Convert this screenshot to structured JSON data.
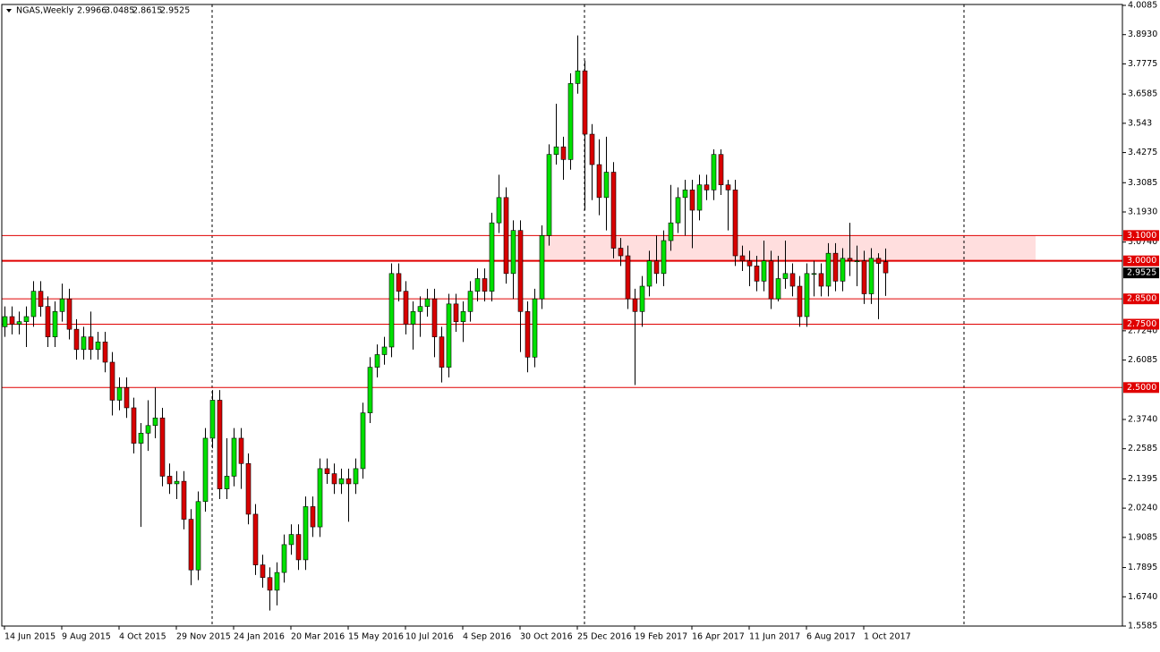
{
  "chart_data": {
    "type": "candlestick",
    "symbol": "NGAS,Weekly",
    "categories": [
      "14 Jun 2015",
      null,
      null,
      null,
      null,
      null,
      null,
      null,
      "9 Aug 2015",
      null,
      null,
      null,
      null,
      null,
      null,
      null,
      "4 Oct 2015",
      null,
      null,
      null,
      null,
      null,
      null,
      null,
      "29 Nov 2015",
      null,
      null,
      null,
      null,
      null,
      null,
      null,
      "24 Jan 2016",
      null,
      null,
      null,
      null,
      null,
      null,
      null,
      "20 Mar 2016",
      null,
      null,
      null,
      null,
      null,
      null,
      null,
      "15 May 2016",
      null,
      null,
      null,
      null,
      null,
      null,
      null,
      "10 Jul 2016",
      null,
      null,
      null,
      null,
      null,
      null,
      null,
      "4 Sep 2016",
      null,
      null,
      null,
      null,
      null,
      null,
      null,
      "30 Oct 2016",
      null,
      null,
      null,
      null,
      null,
      null,
      null,
      "25 Dec 2016",
      null,
      null,
      null,
      null,
      null,
      null,
      null,
      "19 Feb 2017",
      null,
      null,
      null,
      null,
      null,
      null,
      null,
      "16 Apr 2017",
      null,
      null,
      null,
      null,
      null,
      null,
      null,
      "11 Jun 2017",
      null,
      null,
      null,
      null,
      null,
      null,
      null,
      "6 Aug 2017",
      null,
      null,
      null,
      null,
      null,
      null,
      null,
      "1 Oct 2017",
      null,
      null,
      null
    ],
    "series": [
      {
        "up_color": "#00e000",
        "down_color": "#d80000",
        "open": [
          2.74,
          2.78,
          2.75,
          2.76,
          2.78,
          2.88,
          2.82,
          2.7,
          2.8,
          2.85,
          2.73,
          2.65,
          2.7,
          2.65,
          2.68,
          2.6,
          2.45,
          2.5,
          2.42,
          2.28,
          2.32,
          2.35,
          2.38,
          2.15,
          2.12,
          2.13,
          1.98,
          1.78,
          2.05,
          2.3,
          2.45,
          2.1,
          2.15,
          2.3,
          2.2,
          2.0,
          1.8,
          1.75,
          1.7,
          1.77,
          1.88,
          1.92,
          1.82,
          2.03,
          1.95,
          2.18,
          2.16,
          2.12,
          2.14,
          2.12,
          2.18,
          2.4,
          2.58,
          2.63,
          2.66,
          2.95,
          2.88,
          2.75,
          2.8,
          2.82,
          2.85,
          2.7,
          2.58,
          2.83,
          2.76,
          2.8,
          2.88,
          2.93,
          2.88,
          3.15,
          3.25,
          2.95,
          3.12,
          2.8,
          2.62,
          2.85,
          3.1,
          3.42,
          3.45,
          3.4,
          3.7,
          3.75,
          3.5,
          3.38,
          3.25,
          3.35,
          3.05,
          3.02,
          2.85,
          2.8,
          2.9,
          3.0,
          2.95,
          3.08,
          3.15,
          3.25,
          3.28,
          3.2,
          3.3,
          3.28,
          3.42,
          3.3,
          3.28,
          3.02,
          3.0,
          2.98,
          2.92,
          3.0,
          2.85,
          2.93,
          2.95,
          2.9,
          2.78,
          2.95,
          2.95,
          2.9,
          3.03,
          2.92,
          3.01,
          3.0,
          3.0,
          2.87,
          3.01,
          2.9966
        ],
        "high": [
          2.82,
          2.82,
          2.8,
          2.82,
          2.92,
          2.92,
          2.86,
          2.84,
          2.91,
          2.89,
          2.77,
          2.74,
          2.8,
          2.72,
          2.72,
          2.64,
          2.54,
          2.54,
          2.46,
          2.36,
          2.45,
          2.5,
          2.42,
          2.2,
          2.17,
          2.17,
          2.02,
          2.09,
          2.34,
          2.49,
          2.49,
          2.3,
          2.34,
          2.34,
          2.24,
          2.04,
          1.84,
          1.79,
          1.81,
          1.92,
          1.96,
          1.96,
          2.07,
          2.07,
          2.22,
          2.22,
          2.2,
          2.18,
          2.18,
          2.22,
          2.44,
          2.62,
          2.67,
          2.7,
          2.99,
          2.99,
          2.92,
          2.84,
          2.86,
          2.89,
          2.89,
          2.74,
          2.87,
          2.87,
          2.84,
          2.92,
          2.97,
          2.97,
          3.19,
          3.34,
          3.29,
          3.16,
          3.16,
          2.84,
          2.89,
          3.14,
          3.46,
          3.62,
          3.49,
          3.74,
          3.89,
          3.79,
          3.54,
          3.48,
          3.49,
          3.39,
          3.09,
          3.06,
          2.89,
          2.94,
          3.04,
          3.1,
          3.12,
          3.3,
          3.29,
          3.32,
          3.32,
          3.34,
          3.34,
          3.44,
          3.44,
          3.32,
          3.32,
          3.06,
          3.04,
          3.02,
          3.08,
          3.04,
          3.02,
          3.08,
          2.99,
          2.94,
          2.99,
          3.0,
          2.99,
          3.07,
          3.07,
          3.05,
          3.15,
          3.06,
          3.04,
          3.05,
          3.03,
          3.0485
        ],
        "low": [
          2.7,
          2.71,
          2.71,
          2.66,
          2.74,
          2.78,
          2.66,
          2.66,
          2.76,
          2.69,
          2.61,
          2.61,
          2.61,
          2.61,
          2.56,
          2.39,
          2.41,
          2.38,
          2.24,
          1.95,
          2.25,
          2.3,
          2.11,
          2.08,
          2.06,
          1.94,
          1.72,
          1.74,
          2.01,
          2.26,
          2.06,
          2.06,
          2.11,
          2.1,
          1.96,
          1.76,
          1.71,
          1.62,
          1.64,
          1.73,
          1.84,
          1.78,
          1.78,
          1.91,
          1.91,
          2.12,
          2.08,
          2.08,
          1.97,
          2.08,
          2.14,
          2.36,
          2.54,
          2.59,
          2.62,
          2.84,
          2.71,
          2.65,
          2.7,
          2.78,
          2.62,
          2.52,
          2.54,
          2.72,
          2.68,
          2.76,
          2.84,
          2.84,
          2.84,
          3.11,
          2.91,
          2.85,
          2.64,
          2.56,
          2.58,
          2.81,
          3.06,
          3.38,
          3.32,
          3.36,
          3.66,
          3.2,
          3.24,
          3.18,
          3.12,
          3.01,
          2.98,
          2.81,
          2.51,
          2.74,
          2.86,
          2.91,
          2.9,
          3.04,
          3.11,
          3.1,
          3.05,
          3.16,
          3.24,
          3.24,
          3.26,
          3.12,
          2.98,
          2.96,
          2.9,
          2.88,
          2.88,
          2.81,
          2.84,
          2.89,
          2.86,
          2.74,
          2.74,
          2.86,
          2.86,
          2.86,
          2.88,
          2.88,
          2.94,
          2.9,
          2.83,
          2.83,
          2.77,
          2.8615
        ],
        "close": [
          2.78,
          2.75,
          2.76,
          2.78,
          2.88,
          2.82,
          2.7,
          2.8,
          2.85,
          2.73,
          2.65,
          2.7,
          2.65,
          2.68,
          2.6,
          2.45,
          2.5,
          2.42,
          2.28,
          2.32,
          2.35,
          2.38,
          2.15,
          2.12,
          2.13,
          1.98,
          1.78,
          2.05,
          2.3,
          2.45,
          2.1,
          2.15,
          2.3,
          2.2,
          2.0,
          1.8,
          1.75,
          1.7,
          1.77,
          1.88,
          1.92,
          1.82,
          2.03,
          1.95,
          2.18,
          2.16,
          2.12,
          2.14,
          2.12,
          2.18,
          2.4,
          2.58,
          2.63,
          2.66,
          2.95,
          2.88,
          2.75,
          2.8,
          2.82,
          2.85,
          2.7,
          2.58,
          2.83,
          2.76,
          2.8,
          2.88,
          2.93,
          2.88,
          3.15,
          3.25,
          2.95,
          3.12,
          2.8,
          2.62,
          2.85,
          3.1,
          3.42,
          3.45,
          3.4,
          3.7,
          3.75,
          3.5,
          3.38,
          3.25,
          3.35,
          3.05,
          3.02,
          2.85,
          2.8,
          2.9,
          3.0,
          2.95,
          3.08,
          3.15,
          3.25,
          3.28,
          3.2,
          3.3,
          3.28,
          3.42,
          3.3,
          3.28,
          3.02,
          3.0,
          2.98,
          2.92,
          3.0,
          2.85,
          2.93,
          2.95,
          2.9,
          2.78,
          2.95,
          2.95,
          2.9,
          3.03,
          2.92,
          3.01,
          3.0,
          3.0,
          2.87,
          3.01,
          2.99,
          2.9525
        ]
      }
    ],
    "ylim": [
      1.5585,
      4.0085
    ],
    "yticks": [
      4.0085,
      {
        "value": 3.893,
        "label": "3.8930"
      },
      3.7775,
      3.6585,
      3.543,
      3.4275,
      3.3085,
      {
        "value": 3.193,
        "label": "3.1930"
      },
      {
        "value": 3.074,
        "label": "3.0740"
      },
      {
        "value": 2.724,
        "label": "2.7240"
      },
      2.6085,
      {
        "value": 2.374,
        "label": "2.3740"
      },
      2.2585,
      2.1395,
      {
        "value": 2.024,
        "label": "2.0240"
      },
      1.9085,
      1.7895,
      {
        "value": 1.674,
        "label": "1.6740"
      },
      1.5585
    ],
    "levels": [
      {
        "value": 3.1,
        "label": "3.1000"
      },
      {
        "value": 3.0,
        "label": "3.0000"
      },
      {
        "value": 2.85,
        "label": "2.8500"
      },
      {
        "value": 2.75,
        "label": "2.7500"
      },
      {
        "value": 2.5,
        "label": "2.5000"
      }
    ],
    "level_color": "#e00000",
    "zone": [
      3.0,
      3.1
    ],
    "zone_color": "#ffdede"
  }
}
